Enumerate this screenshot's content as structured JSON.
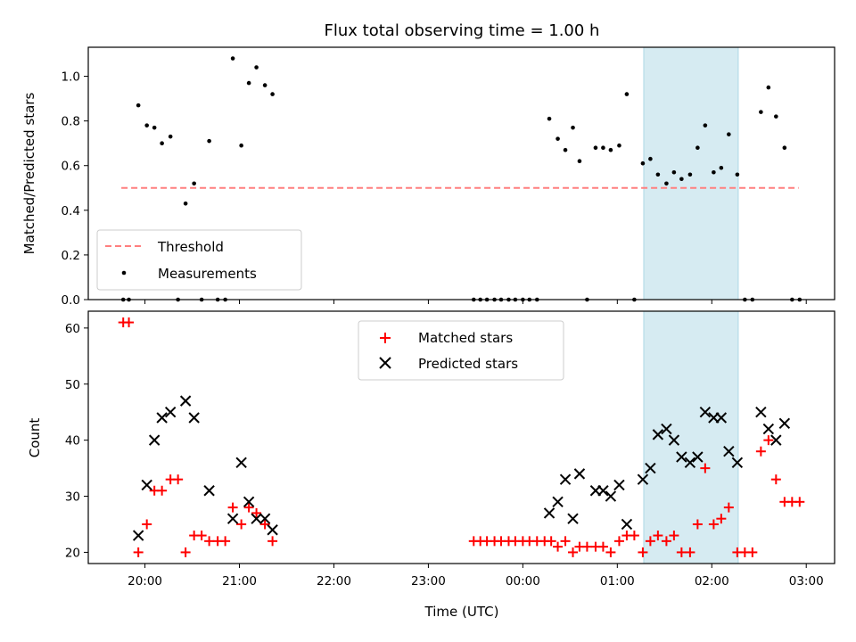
{
  "chart_data": [
    {
      "type": "scatter",
      "title": "Flux total observing time = 1.00 h",
      "xlabel": "",
      "ylabel": "Matched/Predicted stars",
      "xlim_hours": [
        19.4,
        27.3
      ],
      "ylim": [
        0,
        1.13
      ],
      "x_ticks": [
        20,
        21,
        22,
        23,
        24,
        25,
        26,
        27
      ],
      "y_ticks": [
        0.0,
        0.2,
        0.4,
        0.6,
        0.8,
        1.0
      ],
      "y_tick_labels": [
        "0.0",
        "0.2",
        "0.4",
        "0.6",
        "0.8",
        "1.0"
      ],
      "highlight_span_hours": [
        25.28,
        26.28
      ],
      "threshold": {
        "name": "Threshold",
        "value": 0.5,
        "x_range_hours": [
          19.75,
          26.92
        ],
        "color": "#ff7f7f"
      },
      "series": [
        {
          "name": "Measurements",
          "color": "#000000",
          "points": [
            [
              19.77,
              0.0
            ],
            [
              19.83,
              0.0
            ],
            [
              19.93,
              0.87
            ],
            [
              20.02,
              0.78
            ],
            [
              20.1,
              0.77
            ],
            [
              20.18,
              0.7
            ],
            [
              20.27,
              0.73
            ],
            [
              20.35,
              0.0
            ],
            [
              20.43,
              0.43
            ],
            [
              20.52,
              0.52
            ],
            [
              20.6,
              0.0
            ],
            [
              20.68,
              0.71
            ],
            [
              20.77,
              0.0
            ],
            [
              20.85,
              0.0
            ],
            [
              20.93,
              1.08
            ],
            [
              21.02,
              0.69
            ],
            [
              21.1,
              0.97
            ],
            [
              21.18,
              1.04
            ],
            [
              21.27,
              0.96
            ],
            [
              21.35,
              0.92
            ],
            [
              23.48,
              0.0
            ],
            [
              23.55,
              0.0
            ],
            [
              23.62,
              0.0
            ],
            [
              23.7,
              0.0
            ],
            [
              23.77,
              0.0
            ],
            [
              23.85,
              0.0
            ],
            [
              23.92,
              0.0
            ],
            [
              24.0,
              0.0
            ],
            [
              24.07,
              0.0
            ],
            [
              24.15,
              0.0
            ],
            [
              24.28,
              0.81
            ],
            [
              24.37,
              0.72
            ],
            [
              24.45,
              0.67
            ],
            [
              24.53,
              0.77
            ],
            [
              24.6,
              0.62
            ],
            [
              24.68,
              0.0
            ],
            [
              24.77,
              0.68
            ],
            [
              24.85,
              0.68
            ],
            [
              24.93,
              0.67
            ],
            [
              25.02,
              0.69
            ],
            [
              25.1,
              0.92
            ],
            [
              25.18,
              0.0
            ],
            [
              25.27,
              0.61
            ],
            [
              25.35,
              0.63
            ],
            [
              25.43,
              0.56
            ],
            [
              25.52,
              0.52
            ],
            [
              25.6,
              0.57
            ],
            [
              25.68,
              0.54
            ],
            [
              25.77,
              0.56
            ],
            [
              25.85,
              0.68
            ],
            [
              25.93,
              0.78
            ],
            [
              26.02,
              0.57
            ],
            [
              26.1,
              0.59
            ],
            [
              26.18,
              0.74
            ],
            [
              26.27,
              0.56
            ],
            [
              26.35,
              0.0
            ],
            [
              26.43,
              0.0
            ],
            [
              26.52,
              0.84
            ],
            [
              26.6,
              0.95
            ],
            [
              26.68,
              0.82
            ],
            [
              26.77,
              0.68
            ],
            [
              26.85,
              0.0
            ],
            [
              26.93,
              0.0
            ]
          ]
        }
      ],
      "legend": {
        "placement": "lower-left",
        "entries": [
          "Threshold",
          "Measurements"
        ]
      }
    },
    {
      "type": "scatter",
      "title": "",
      "xlabel": "Time (UTC)",
      "ylabel": "Count",
      "xlim_hours": [
        19.4,
        27.3
      ],
      "ylim": [
        18,
        63
      ],
      "x_ticks": [
        20,
        21,
        22,
        23,
        24,
        25,
        26,
        27
      ],
      "x_tick_labels": [
        "20:00",
        "21:00",
        "22:00",
        "23:00",
        "00:00",
        "01:00",
        "02:00",
        "03:00"
      ],
      "y_ticks": [
        20,
        30,
        40,
        50,
        60
      ],
      "y_tick_labels": [
        "20",
        "30",
        "40",
        "50",
        "60"
      ],
      "highlight_span_hours": [
        25.28,
        26.28
      ],
      "series": [
        {
          "name": "Matched stars",
          "marker": "plus",
          "color": "#ff0000",
          "points": [
            [
              19.77,
              61
            ],
            [
              19.83,
              61
            ],
            [
              19.93,
              20
            ],
            [
              20.02,
              25
            ],
            [
              20.1,
              31
            ],
            [
              20.18,
              31
            ],
            [
              20.27,
              33
            ],
            [
              20.35,
              33
            ],
            [
              20.43,
              20
            ],
            [
              20.52,
              23
            ],
            [
              20.6,
              23
            ],
            [
              20.68,
              22
            ],
            [
              20.77,
              22
            ],
            [
              20.85,
              22
            ],
            [
              20.93,
              28
            ],
            [
              21.02,
              25
            ],
            [
              21.1,
              28
            ],
            [
              21.18,
              27
            ],
            [
              21.27,
              25
            ],
            [
              21.35,
              22
            ],
            [
              23.48,
              22
            ],
            [
              23.55,
              22
            ],
            [
              23.62,
              22
            ],
            [
              23.7,
              22
            ],
            [
              23.77,
              22
            ],
            [
              23.85,
              22
            ],
            [
              23.92,
              22
            ],
            [
              24.0,
              22
            ],
            [
              24.07,
              22
            ],
            [
              24.15,
              22
            ],
            [
              24.23,
              22
            ],
            [
              24.3,
              22
            ],
            [
              24.37,
              21
            ],
            [
              24.45,
              22
            ],
            [
              24.53,
              20
            ],
            [
              24.6,
              21
            ],
            [
              24.68,
              21
            ],
            [
              24.77,
              21
            ],
            [
              24.85,
              21
            ],
            [
              24.93,
              20
            ],
            [
              25.02,
              22
            ],
            [
              25.1,
              23
            ],
            [
              25.18,
              23
            ],
            [
              25.27,
              20
            ],
            [
              25.35,
              22
            ],
            [
              25.43,
              23
            ],
            [
              25.52,
              22
            ],
            [
              25.6,
              23
            ],
            [
              25.68,
              20
            ],
            [
              25.77,
              20
            ],
            [
              25.85,
              25
            ],
            [
              25.93,
              35
            ],
            [
              26.02,
              25
            ],
            [
              26.1,
              26
            ],
            [
              26.18,
              28
            ],
            [
              26.27,
              20
            ],
            [
              26.35,
              20
            ],
            [
              26.43,
              20
            ],
            [
              26.52,
              38
            ],
            [
              26.6,
              40
            ],
            [
              26.68,
              33
            ],
            [
              26.77,
              29
            ],
            [
              26.85,
              29
            ],
            [
              26.93,
              29
            ]
          ]
        },
        {
          "name": "Predicted stars",
          "marker": "x",
          "color": "#000000",
          "points": [
            [
              19.93,
              23
            ],
            [
              20.02,
              32
            ],
            [
              20.1,
              40
            ],
            [
              20.18,
              44
            ],
            [
              20.27,
              45
            ],
            [
              20.43,
              47
            ],
            [
              20.52,
              44
            ],
            [
              20.68,
              31
            ],
            [
              20.93,
              26
            ],
            [
              21.02,
              36
            ],
            [
              21.1,
              29
            ],
            [
              21.18,
              26
            ],
            [
              21.27,
              26
            ],
            [
              21.35,
              24
            ],
            [
              24.28,
              27
            ],
            [
              24.37,
              29
            ],
            [
              24.45,
              33
            ],
            [
              24.53,
              26
            ],
            [
              24.6,
              34
            ],
            [
              24.77,
              31
            ],
            [
              24.85,
              31
            ],
            [
              24.93,
              30
            ],
            [
              25.02,
              32
            ],
            [
              25.1,
              25
            ],
            [
              25.27,
              33
            ],
            [
              25.35,
              35
            ],
            [
              25.43,
              41
            ],
            [
              25.52,
              42
            ],
            [
              25.6,
              40
            ],
            [
              25.68,
              37
            ],
            [
              25.77,
              36
            ],
            [
              25.85,
              37
            ],
            [
              25.93,
              45
            ],
            [
              26.02,
              44
            ],
            [
              26.1,
              44
            ],
            [
              26.18,
              38
            ],
            [
              26.27,
              36
            ],
            [
              26.52,
              45
            ],
            [
              26.6,
              42
            ],
            [
              26.68,
              40
            ],
            [
              26.77,
              43
            ]
          ]
        }
      ],
      "legend": {
        "placement": "upper-center",
        "entries": [
          "Matched stars",
          "Predicted stars"
        ]
      }
    }
  ]
}
